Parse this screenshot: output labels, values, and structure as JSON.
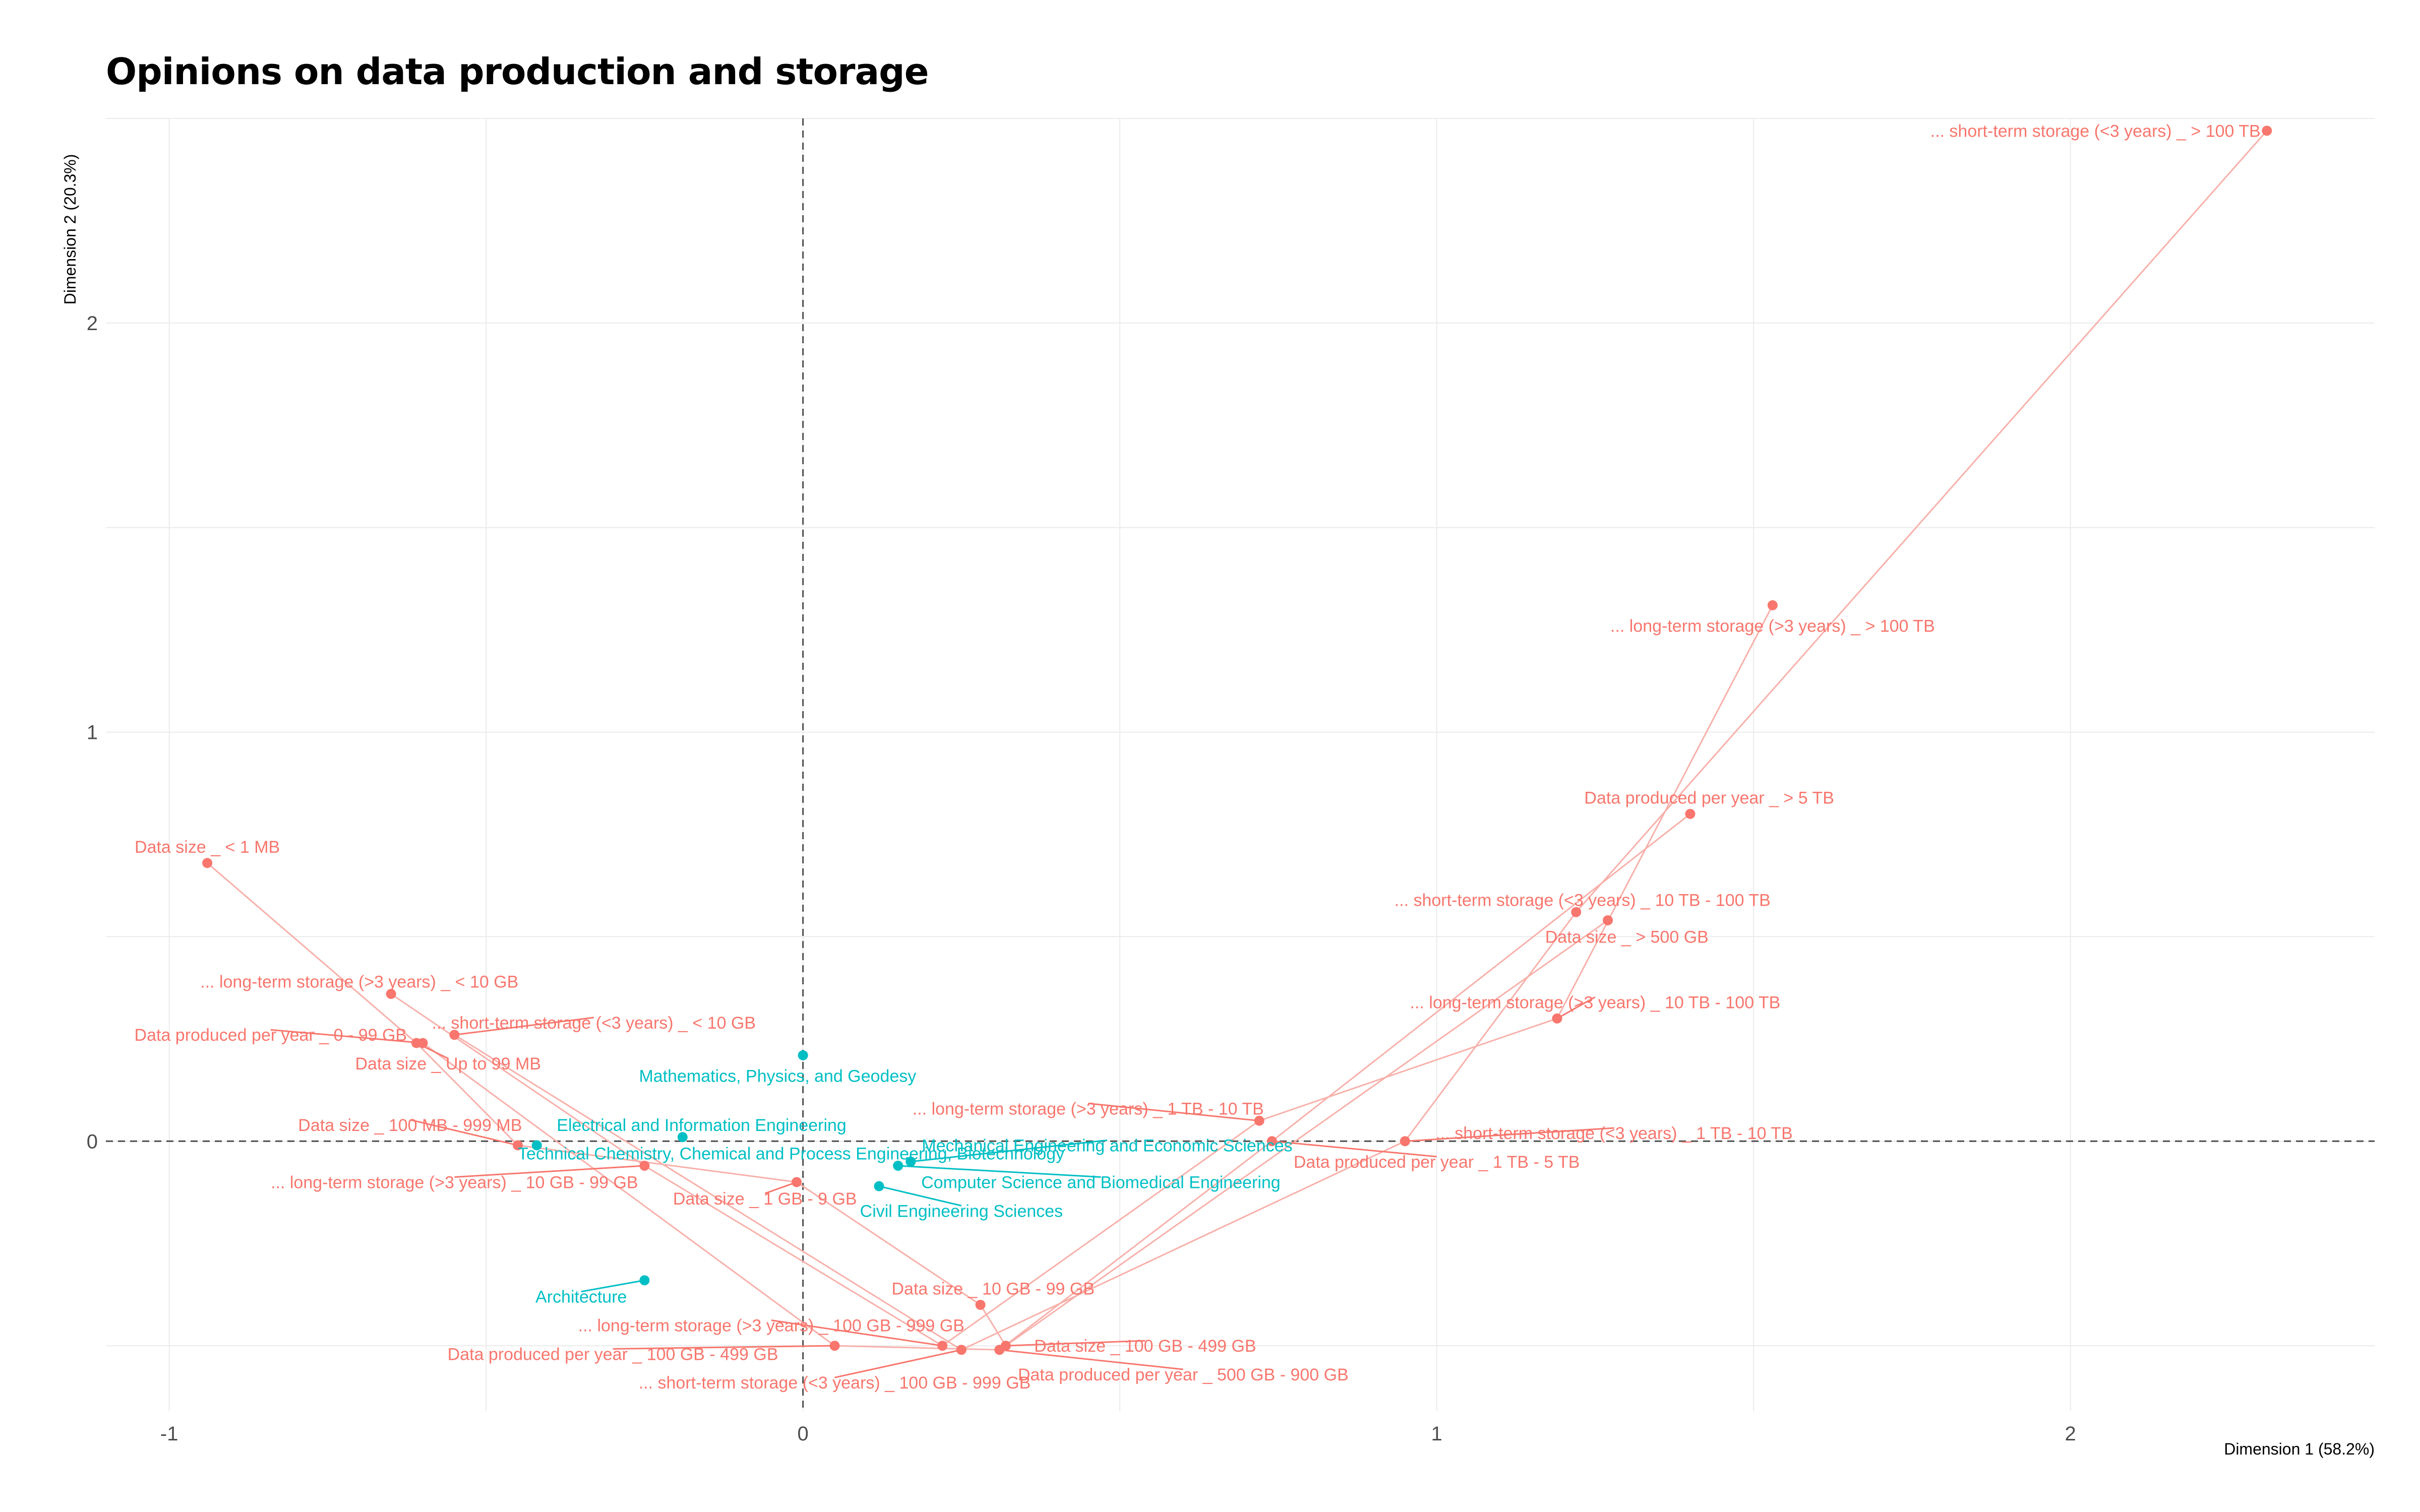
{
  "chart_data": {
    "type": "scatter",
    "title": "Opinions on data production and storage",
    "xlabel": "Dimension 1 (58.2%)",
    "ylabel": "Dimension 2 (20.3%)",
    "xlim": [
      -1.1,
      2.48
    ],
    "ylim": [
      -0.66,
      2.5
    ],
    "x_ticks": [
      -1,
      0,
      1,
      2
    ],
    "x_tick_labels": [
      "-1",
      "0",
      "1",
      "2"
    ],
    "y_ticks": [
      0,
      1,
      2
    ],
    "y_tick_labels": [
      "0",
      "1",
      "2"
    ],
    "grid": true,
    "reference_lines": {
      "x": 0,
      "y": 0,
      "style": "dashed"
    },
    "colors": {
      "variables": "#F8766D",
      "faculties": "#00BFC4",
      "grid": "#EBEBEB",
      "path": "#F8B0AA"
    },
    "series": [
      {
        "name": "variables",
        "color": "#F8766D",
        "points": [
          {
            "label": "... short-term storage (<3 years) _ > 100 TB",
            "x": 2.31,
            "y": 2.47,
            "lx": 2.3,
            "ly": 2.47,
            "anchor": "end"
          },
          {
            "label": "... long-term storage (>3 years) _ > 100 TB",
            "x": 1.53,
            "y": 1.31,
            "lx": 1.53,
            "ly": 1.26,
            "anchor": "middle"
          },
          {
            "label": "Data produced per year _ > 5 TB",
            "x": 1.4,
            "y": 0.8,
            "lx": 1.43,
            "ly": 0.84,
            "anchor": "middle"
          },
          {
            "label": "... short-term storage (<3 years) _ 10 TB - 100 TB",
            "x": 1.22,
            "y": 0.56,
            "lx": 1.23,
            "ly": 0.59,
            "anchor": "middle"
          },
          {
            "label": "Data size _ > 500 GB",
            "x": 1.27,
            "y": 0.54,
            "lx": 1.3,
            "ly": 0.5,
            "anchor": "middle"
          },
          {
            "label": "... long-term storage (>3 years) _ 10 TB - 100 TB",
            "x": 1.19,
            "y": 0.3,
            "lx": 1.25,
            "ly": 0.34,
            "anchor": "middle"
          },
          {
            "label": "... long-term storage (>3 years) _ 1 TB - 10 TB",
            "x": 0.72,
            "y": 0.05,
            "lx": 0.45,
            "ly": 0.08,
            "anchor": "middle"
          },
          {
            "label": "... short-term storage (<3 years) _ 1 TB - 10 TB",
            "x": 0.95,
            "y": 0.0,
            "lx": 1.28,
            "ly": 0.02,
            "anchor": "middle"
          },
          {
            "label": "Data produced per year _ 1 TB - 5 TB",
            "x": 0.74,
            "y": 0.0,
            "lx": 1.0,
            "ly": -0.05,
            "anchor": "middle"
          },
          {
            "label": "Data size _ < 1 MB",
            "x": -0.94,
            "y": 0.68,
            "lx": -0.94,
            "ly": 0.72,
            "anchor": "middle"
          },
          {
            "label": "... long-term storage (>3 years) _ < 10 GB",
            "x": -0.65,
            "y": 0.36,
            "lx": -0.7,
            "ly": 0.39,
            "anchor": "middle"
          },
          {
            "label": "... short-term storage (<3 years) _ < 10 GB",
            "x": -0.55,
            "y": 0.26,
            "lx": -0.33,
            "ly": 0.29,
            "anchor": "middle"
          },
          {
            "label": "Data produced per year _ 0 - 99 GB",
            "x": -0.6,
            "y": 0.24,
            "lx": -0.84,
            "ly": 0.26,
            "anchor": "middle"
          },
          {
            "label": "Data size _ Up to 99 MB",
            "x": -0.61,
            "y": 0.24,
            "lx": -0.56,
            "ly": 0.19,
            "anchor": "middle"
          },
          {
            "label": "Data size _ 100 MB - 999 MB",
            "x": -0.45,
            "y": -0.01,
            "lx": -0.62,
            "ly": 0.04,
            "anchor": "middle"
          },
          {
            "label": "... long-term storage (>3 years) _ 10 GB - 99 GB",
            "x": -0.25,
            "y": -0.06,
            "lx": -0.55,
            "ly": -0.1,
            "anchor": "middle"
          },
          {
            "label": "Data size _ 1 GB - 9 GB",
            "x": -0.01,
            "y": -0.1,
            "lx": -0.06,
            "ly": -0.14,
            "anchor": "middle"
          },
          {
            "label": "Data size _ 10 GB - 99 GB",
            "x": 0.28,
            "y": -0.4,
            "lx": 0.3,
            "ly": -0.36,
            "anchor": "middle"
          },
          {
            "label": "... long-term storage (>3 years) _ 100 GB - 999 GB",
            "x": 0.22,
            "y": -0.5,
            "lx": -0.05,
            "ly": -0.45,
            "anchor": "middle"
          },
          {
            "label": "Data produced per year _ 100 GB - 499 GB",
            "x": 0.05,
            "y": -0.5,
            "lx": -0.3,
            "ly": -0.52,
            "anchor": "middle"
          },
          {
            "label": "... short-term storage (<3 years) _ 100 GB - 999 GB",
            "x": 0.25,
            "y": -0.51,
            "lx": 0.05,
            "ly": -0.59,
            "anchor": "middle"
          },
          {
            "label": "Data size _ 100 GB - 499 GB",
            "x": 0.32,
            "y": -0.5,
            "lx": 0.54,
            "ly": -0.5,
            "anchor": "middle"
          },
          {
            "label": "Data produced per year _ 500 GB - 900 GB",
            "x": 0.31,
            "y": -0.51,
            "lx": 0.6,
            "ly": -0.57,
            "anchor": "middle"
          }
        ]
      },
      {
        "name": "faculties",
        "color": "#00BFC4",
        "points": [
          {
            "label": "Mathematics, Physics, and Geodesy",
            "x": 0.0,
            "y": 0.21,
            "lx": -0.04,
            "ly": 0.16,
            "anchor": "middle"
          },
          {
            "label": "Electrical and Information Engineering",
            "x": -0.19,
            "y": 0.01,
            "lx": -0.16,
            "ly": 0.04,
            "anchor": "middle"
          },
          {
            "label": "Technical Chemistry, Chemical and Process Engineering, Biotechnology",
            "x": -0.42,
            "y": -0.01,
            "lx": -0.45,
            "ly": -0.03,
            "anchor": "start"
          },
          {
            "label": "Mechanical Engineering and Economic Sciences",
            "x": 0.17,
            "y": -0.05,
            "lx": 0.48,
            "ly": -0.01,
            "anchor": "middle"
          },
          {
            "label": "Computer Science and Biomedical Engineering",
            "x": 0.15,
            "y": -0.06,
            "lx": 0.47,
            "ly": -0.1,
            "anchor": "middle"
          },
          {
            "label": "Civil Engineering Sciences",
            "x": 0.12,
            "y": -0.11,
            "lx": 0.25,
            "ly": -0.17,
            "anchor": "middle"
          },
          {
            "label": "Architecture",
            "x": -0.25,
            "y": -0.34,
            "lx": -0.35,
            "ly": -0.38,
            "anchor": "middle"
          }
        ]
      }
    ],
    "paths": [
      [
        "... short-term storage (<3 years) _ > 100 TB",
        "... short-term storage (<3 years) _ 10 TB - 100 TB",
        "... short-term storage (<3 years) _ 1 TB - 10 TB",
        "... short-term storage (<3 years) _ 100 GB - 999 GB",
        "... short-term storage (<3 years) _ < 10 GB"
      ],
      [
        "... long-term storage (>3 years) _ > 100 TB",
        "... long-term storage (>3 years) _ 10 TB - 100 TB",
        "... long-term storage (>3 years) _ 1 TB - 10 TB",
        "... long-term storage (>3 years) _ 100 GB - 999 GB",
        "... long-term storage (>3 years) _ 10 GB - 99 GB",
        "... long-term storage (>3 years) _ < 10 GB"
      ],
      [
        "Data produced per year _ > 5 TB",
        "Data produced per year _ 1 TB - 5 TB",
        "Data produced per year _ 500 GB - 900 GB",
        "Data produced per year _ 100 GB - 499 GB",
        "Data produced per year _ 0 - 99 GB"
      ],
      [
        "Data size _ > 500 GB",
        "Data size _ 100 GB - 499 GB",
        "Data size _ 10 GB - 99 GB",
        "Data size _ 1 GB - 9 GB",
        "Data size _ 100 MB - 999 MB",
        "Data size _ Up to 99 MB",
        "Data size _ < 1 MB"
      ]
    ]
  }
}
